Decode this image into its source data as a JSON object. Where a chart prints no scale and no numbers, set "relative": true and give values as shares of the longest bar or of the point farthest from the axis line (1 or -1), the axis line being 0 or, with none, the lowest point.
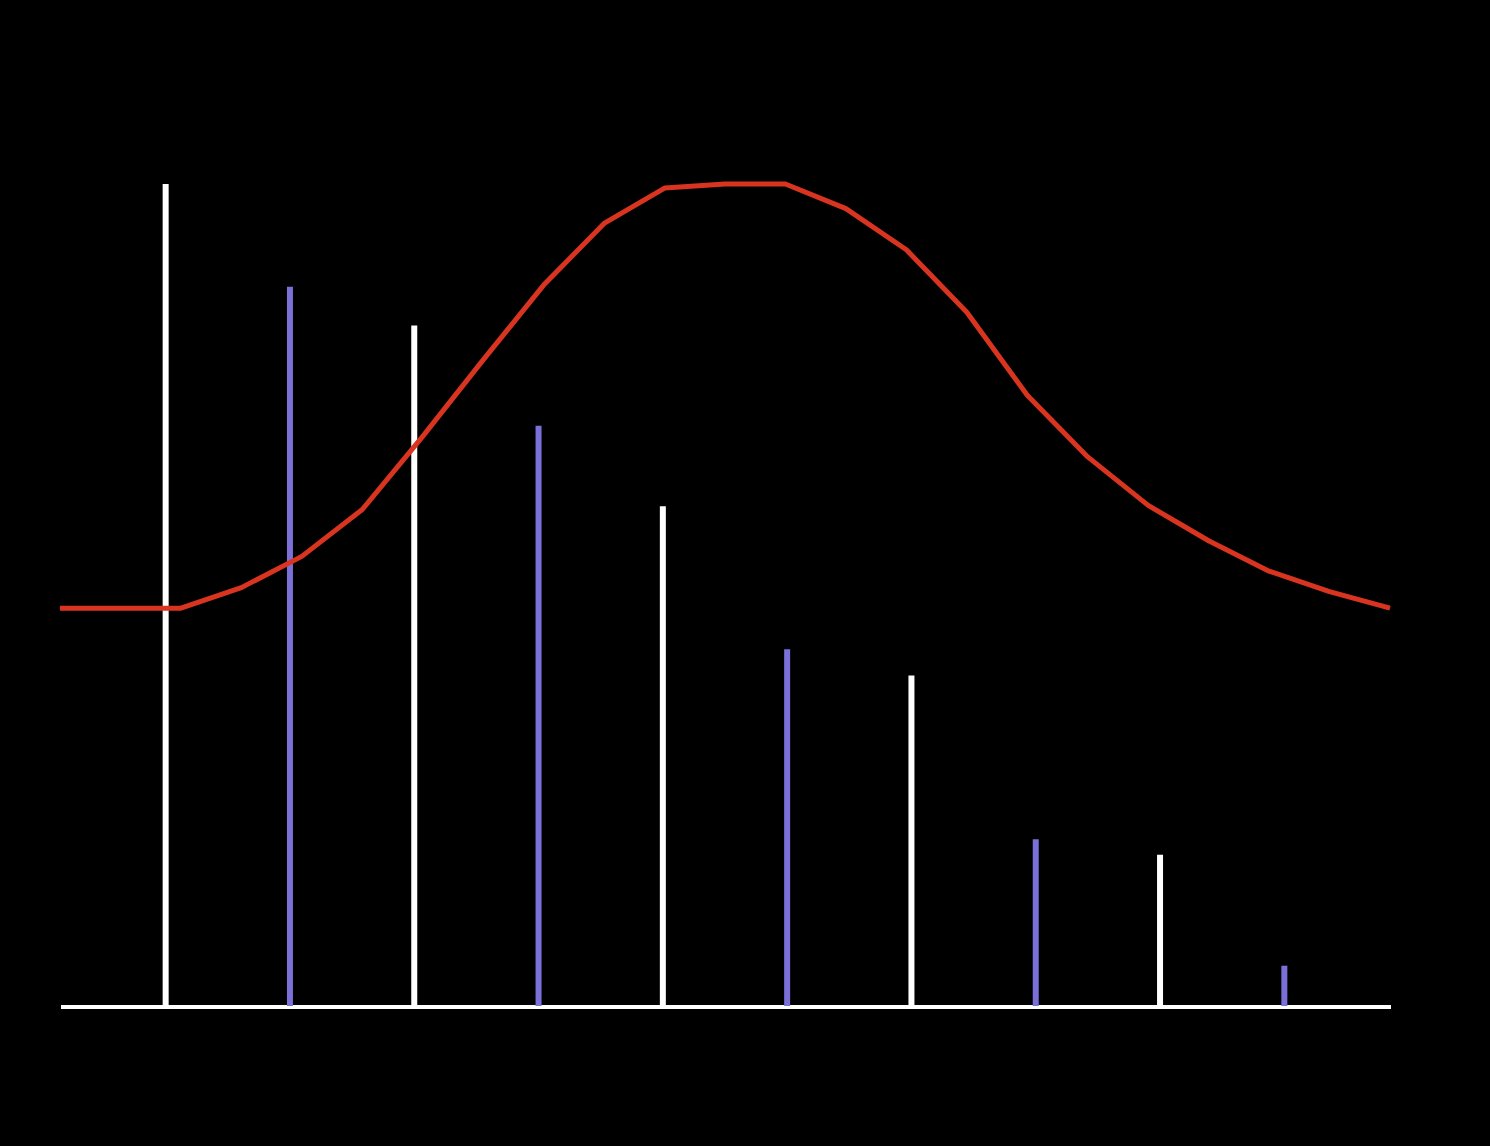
{
  "chart_data": [
    {
      "type": "bar",
      "relative": true,
      "tick_labels": false,
      "grid": false,
      "categories": [
        null,
        null,
        null,
        null,
        null,
        null,
        null,
        null,
        null,
        null
      ],
      "values": [
        1,
        0.875,
        0.828,
        0.706,
        0.608,
        0.434,
        0.402,
        0.203,
        0.184,
        0.049
      ],
      "colors": [
        "#ffffff",
        "#7b70d8",
        "#ffffff",
        "#7b70d8",
        "#ffffff",
        "#7b70d8",
        "#ffffff",
        "#7b70d8",
        "#ffffff",
        "#7b70d8"
      ]
    },
    {
      "type": "line",
      "relative": true,
      "tick_labels": false,
      "grid": false,
      "categories": [
        null,
        null,
        null,
        null,
        null,
        null,
        null,
        null,
        null,
        null,
        null,
        null,
        null,
        null,
        null,
        null,
        null,
        null,
        null,
        null,
        null,
        null,
        null
      ],
      "color": "#d93420",
      "values": [
        0.484,
        0.484,
        0.484,
        0.509,
        0.547,
        0.604,
        0.693,
        0.786,
        0.877,
        0.952,
        0.995,
        1,
        1,
        0.97,
        0.92,
        0.844,
        0.743,
        0.668,
        0.609,
        0.566,
        0.529,
        0.504,
        0.484
      ]
    }
  ]
}
